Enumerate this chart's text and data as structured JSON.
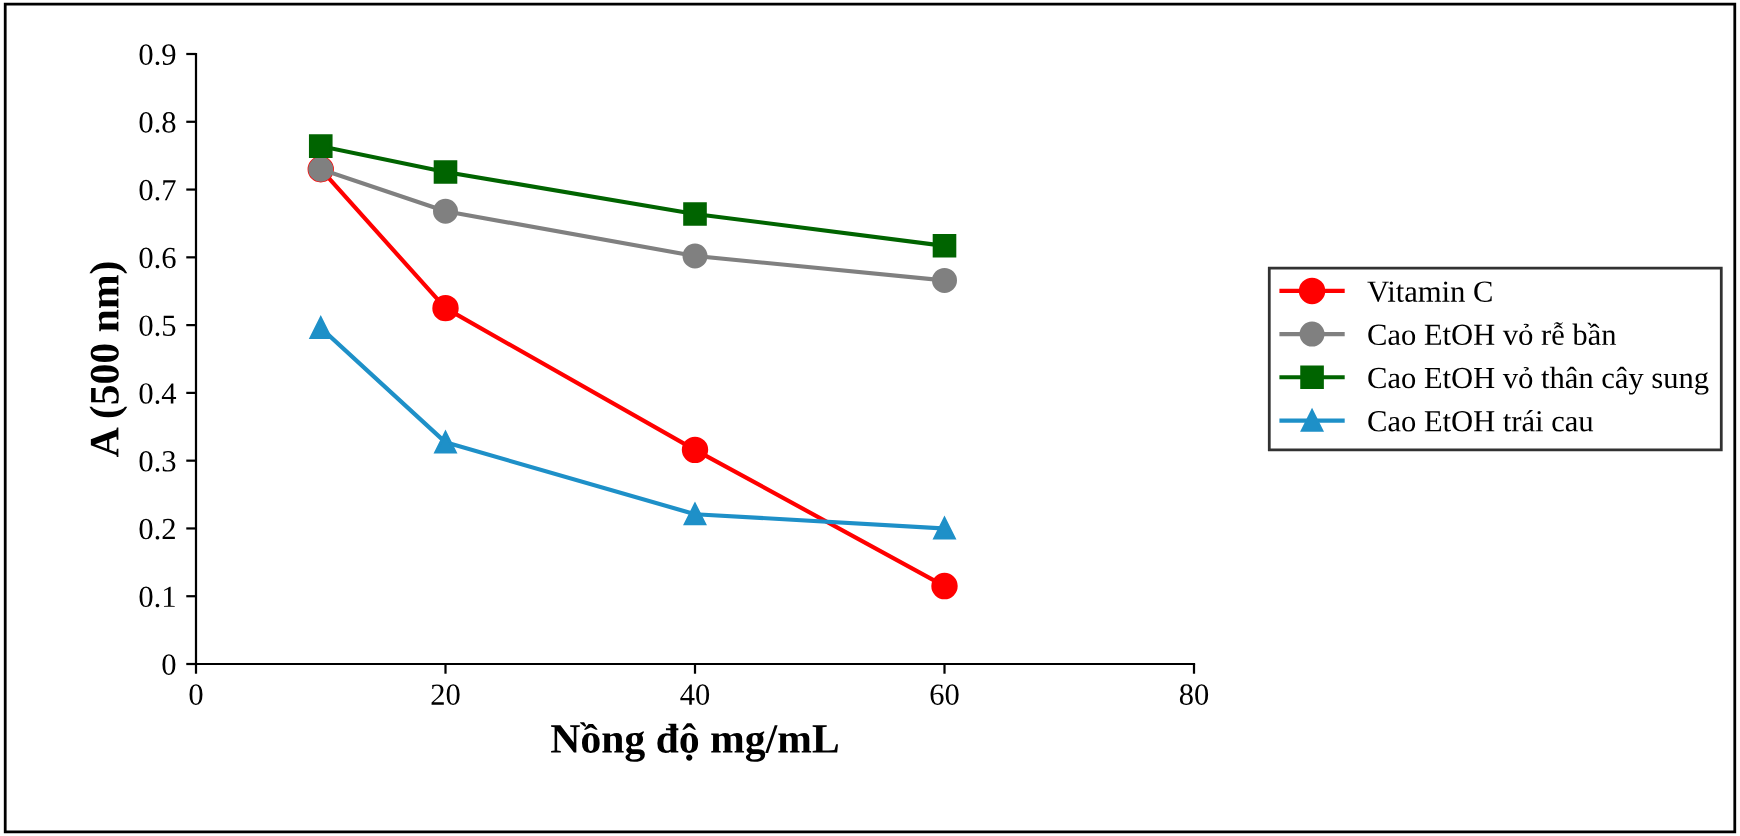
{
  "chart_data": {
    "type": "line",
    "xlabel": "Nồng độ mg/mL",
    "ylabel": "A (500 nm)",
    "x": [
      10,
      20,
      40,
      60
    ],
    "series": [
      {
        "name": "Vitamin C",
        "color": "#ff0000",
        "marker": "circle",
        "values": [
          0.73,
          0.525,
          0.316,
          0.115
        ]
      },
      {
        "name": "Cao EtOH vỏ rễ bần",
        "color": "#808080",
        "marker": "circle",
        "values": [
          0.73,
          0.668,
          0.602,
          0.566
        ]
      },
      {
        "name": "Cao EtOH vỏ thân cây sung",
        "color": "#006400",
        "marker": "square",
        "values": [
          0.764,
          0.726,
          0.664,
          0.617
        ]
      },
      {
        "name": "Cao EtOH trái cau",
        "color": "#1e90c8",
        "marker": "triangle",
        "values": [
          0.496,
          0.327,
          0.221,
          0.2
        ]
      }
    ],
    "xlim": [
      0,
      80
    ],
    "xticks": [
      0,
      20,
      40,
      60,
      80
    ],
    "ylim": [
      0,
      0.9
    ],
    "yticks": [
      0,
      0.1,
      0.2,
      0.3,
      0.4,
      0.5,
      0.6,
      0.7,
      0.8,
      0.9
    ],
    "grid": false,
    "legend": "right",
    "line_style": "solid"
  }
}
